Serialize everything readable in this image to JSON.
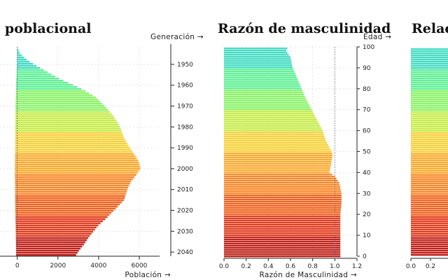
{
  "titles": {
    "pyramid": "ra poblacional",
    "ratio": "Razón de masculinidad",
    "relation": "Relac"
  },
  "colors": {
    "band_colors": [
      "#c0221b",
      "#e03b1e",
      "#f0621f",
      "#f7882a",
      "#fbab2f",
      "#f5d23a",
      "#c8ec4a",
      "#8bf36a",
      "#5ff095",
      "#45dcc4",
      "#3fb4ee"
    ],
    "guide_line": "#777777",
    "grid": "#dddddd"
  },
  "chart_data": [
    {
      "type": "bar",
      "orientation": "horizontal",
      "title": "ra poblacional",
      "xlabel": "Población →",
      "ylabel": "Generación →",
      "x_ticks": [
        0,
        2000,
        4000,
        6000
      ],
      "x_tick_labels": [
        "0",
        "2000",
        "4000",
        "6000"
      ],
      "xlim": [
        -850,
        7000
      ],
      "y_ticks": [
        1950,
        1960,
        1970,
        1980,
        1990,
        2000,
        2010,
        2020,
        2030,
        2040
      ],
      "y_tick_labels": [
        "1950",
        "1960",
        "1970",
        "1980",
        "1990",
        "2000",
        "2010",
        "2020",
        "2030",
        "2040"
      ],
      "grid": true,
      "series": [
        {
          "x_generation": [
            1942,
            1945,
            1948,
            1951,
            1954,
            1957,
            1960,
            1963,
            1966,
            1969,
            1972,
            1975,
            1978,
            1981,
            1984,
            1987,
            1990,
            1993,
            1996,
            1999,
            2000,
            2003,
            2006,
            2009,
            2012,
            2015,
            2018,
            2021,
            2024,
            2027,
            2030,
            2033,
            2036,
            2039,
            2042
          ],
          "values": [
            10,
            150,
            500,
            1000,
            1550,
            2100,
            2800,
            3400,
            3900,
            4200,
            4500,
            4750,
            4950,
            5100,
            5200,
            5350,
            5550,
            5750,
            5950,
            6050,
            6050,
            5850,
            5600,
            5450,
            5350,
            5250,
            4950,
            4650,
            4350,
            4000,
            3750,
            3500,
            3300,
            3050,
            2850
          ]
        }
      ]
    },
    {
      "type": "bar",
      "orientation": "horizontal",
      "title": "Razón de masculinidad",
      "xlabel": "Razón de Masculinidad →",
      "ylabel": "Edad →",
      "xlim": [
        0,
        1.2
      ],
      "x_ticks": [
        0,
        0.2,
        0.4,
        0.6,
        0.8,
        1.0,
        1.2
      ],
      "x_tick_labels": [
        "0.0",
        "0.2",
        "0.4",
        "0.6",
        "0.8",
        "1.0",
        "1.2"
      ],
      "ylim": [
        0,
        100
      ],
      "y_ticks": [
        0,
        10,
        20,
        30,
        40,
        50,
        60,
        70,
        80,
        90,
        100
      ],
      "y_tick_labels": [
        "0",
        "10",
        "20",
        "30",
        "40",
        "50",
        "60",
        "70",
        "80",
        "90",
        "100"
      ],
      "reference_line": 1.0,
      "grid": true,
      "series": [
        {
          "age": [
            0,
            5,
            10,
            15,
            20,
            25,
            30,
            35,
            38,
            40,
            42,
            45,
            48,
            50,
            55,
            60,
            65,
            70,
            75,
            80,
            85,
            90,
            95,
            98,
            100
          ],
          "values": [
            1.05,
            1.05,
            1.05,
            1.05,
            1.05,
            1.06,
            1.06,
            1.04,
            1.0,
            0.95,
            0.96,
            0.97,
            0.98,
            0.97,
            0.92,
            0.89,
            0.84,
            0.79,
            0.74,
            0.7,
            0.66,
            0.62,
            0.6,
            0.56,
            0.58
          ]
        }
      ]
    },
    {
      "type": "bar",
      "orientation": "horizontal",
      "title": "Relac",
      "x_ticks": [
        0,
        0.2
      ],
      "x_tick_labels": [
        "0.0",
        "0.2"
      ],
      "grid": true,
      "series": []
    }
  ]
}
